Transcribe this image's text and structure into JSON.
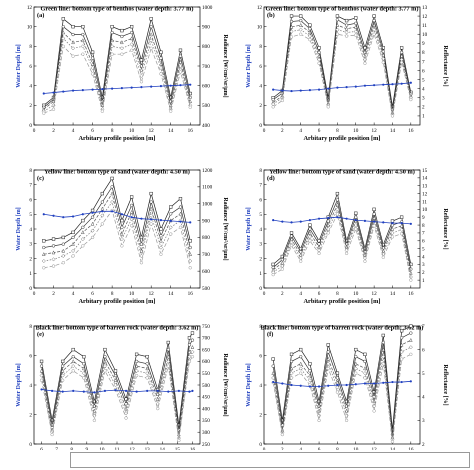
{
  "chart_data": [
    {
      "panel": "(a)",
      "type": "line",
      "title": "Green line: bottom type of benthos (water depth: 3.77 m)",
      "xlabel": "Arbitary profile position [m]",
      "ylabel": "Water Depth [m]",
      "y2label": "Radiance [W/cm²/sr/μm]",
      "xlim": [
        0,
        17
      ],
      "xticks": [
        0,
        2,
        4,
        6,
        8,
        10,
        12,
        14,
        16
      ],
      "ylim": [
        0,
        12
      ],
      "yticks": [
        0,
        2,
        4,
        6,
        8,
        10,
        12
      ],
      "y2lim": [
        400,
        1000
      ],
      "y2ticks": [
        400,
        500,
        600,
        700,
        800,
        900,
        1000
      ],
      "x": [
        1,
        2,
        3,
        4,
        5,
        6,
        7,
        8,
        9,
        10,
        11,
        12,
        13,
        14,
        15,
        16
      ],
      "depth": [
        3.2,
        3.3,
        3.4,
        3.5,
        3.55,
        3.6,
        3.65,
        3.7,
        3.75,
        3.8,
        3.85,
        3.9,
        3.95,
        4.0,
        4.05,
        4.1
      ],
      "series": [
        {
          "values": [
            500,
            540,
            940,
            900,
            900,
            770,
            540,
            900,
            880,
            900,
            730,
            940,
            770,
            540,
            780,
            560
          ]
        },
        {
          "values": [
            490,
            530,
            900,
            860,
            860,
            740,
            520,
            870,
            850,
            870,
            700,
            900,
            740,
            520,
            750,
            540
          ]
        },
        {
          "values": [
            480,
            520,
            870,
            820,
            830,
            710,
            500,
            830,
            820,
            840,
            680,
            860,
            710,
            500,
            720,
            520
          ]
        },
        {
          "values": [
            470,
            500,
            840,
            790,
            800,
            690,
            480,
            800,
            790,
            810,
            650,
            830,
            690,
            480,
            700,
            500
          ]
        },
        {
          "values": [
            460,
            480,
            800,
            750,
            760,
            660,
            470,
            760,
            760,
            780,
            620,
            790,
            660,
            470,
            670,
            490
          ]
        }
      ]
    },
    {
      "panel": "(b)",
      "type": "line",
      "title": "Green line: bottom type of benthos (water depth: 3.77 m)",
      "xlabel": "Arbitary profile position [m]",
      "ylabel": "Water Depth [m]",
      "y2label": "Reflectance [%]",
      "xlim": [
        0,
        17
      ],
      "xticks": [
        0,
        2,
        4,
        6,
        8,
        10,
        12,
        14,
        16
      ],
      "ylim": [
        0,
        12
      ],
      "yticks": [
        0,
        2,
        4,
        6,
        8,
        10,
        12
      ],
      "y2lim": [
        0,
        13
      ],
      "y2ticks": [
        1,
        2,
        3,
        4,
        5,
        6,
        7,
        8,
        9,
        10,
        11,
        12,
        13
      ],
      "x": [
        1,
        2,
        3,
        4,
        5,
        6,
        7,
        8,
        9,
        10,
        11,
        12,
        13,
        14,
        15,
        16
      ],
      "depth": [
        3.6,
        3.5,
        3.45,
        3.5,
        3.55,
        3.6,
        3.7,
        3.8,
        3.85,
        3.9,
        4.0,
        4.05,
        4.1,
        4.15,
        4.2,
        4.3
      ],
      "series": [
        {
          "values": [
            3.0,
            3.8,
            12.0,
            12.0,
            11.0,
            8.5,
            3.0,
            12.0,
            11.5,
            11.8,
            8.5,
            12.0,
            8.5,
            2.0,
            8.5,
            3.6
          ]
        },
        {
          "values": [
            2.8,
            3.5,
            11.4,
            11.5,
            10.6,
            8.0,
            2.7,
            11.6,
            11.0,
            11.2,
            8.0,
            11.5,
            8.1,
            1.7,
            8.0,
            3.4
          ]
        },
        {
          "values": [
            2.5,
            3.2,
            10.8,
            11.0,
            10.2,
            7.6,
            2.4,
            11.0,
            10.6,
            10.8,
            7.6,
            11.0,
            7.7,
            1.4,
            7.6,
            3.2
          ]
        },
        {
          "values": [
            2.3,
            3.0,
            10.3,
            10.5,
            9.8,
            7.2,
            2.2,
            10.5,
            10.2,
            10.3,
            7.2,
            10.5,
            7.3,
            1.2,
            7.2,
            3.0
          ]
        },
        {
          "values": [
            2.0,
            2.7,
            9.7,
            10.0,
            9.4,
            6.8,
            2.0,
            10.0,
            9.8,
            9.9,
            6.8,
            10.0,
            6.9,
            1.0,
            6.9,
            2.8
          ]
        }
      ]
    },
    {
      "panel": "(c)",
      "type": "line",
      "title": "Yellow line: bottom type of sand (water depth: 4.50 m)",
      "xlabel": "Arbitary profile position [m]",
      "ylabel": "Water Depth [m]",
      "y2label": "Radiance [W/cm²/sr/μm]",
      "xlim": [
        0,
        17
      ],
      "xticks": [
        0,
        2,
        4,
        6,
        8,
        10,
        12,
        14,
        16
      ],
      "ylim": [
        0,
        8
      ],
      "yticks": [
        0,
        1,
        2,
        3,
        4,
        5,
        6,
        7,
        8
      ],
      "y2lim": [
        500,
        1200
      ],
      "y2ticks": [
        500,
        600,
        700,
        800,
        900,
        1000,
        1100,
        1200
      ],
      "x": [
        1,
        2,
        3,
        4,
        5,
        6,
        7,
        8,
        9,
        10,
        11,
        12,
        13,
        14,
        15,
        16
      ],
      "depth": [
        5.0,
        4.9,
        4.8,
        4.85,
        5.0,
        5.1,
        5.2,
        5.2,
        5.0,
        4.8,
        4.7,
        4.65,
        4.6,
        4.55,
        4.5,
        4.45
      ],
      "series": [
        {
          "values": [
            780,
            790,
            800,
            830,
            900,
            960,
            1060,
            1150,
            900,
            1040,
            800,
            1060,
            850,
            980,
            1030,
            780
          ]
        },
        {
          "values": [
            740,
            750,
            760,
            800,
            860,
            920,
            1010,
            1100,
            860,
            990,
            760,
            1010,
            810,
            940,
            980,
            740
          ]
        },
        {
          "values": [
            700,
            710,
            720,
            760,
            830,
            880,
            970,
            1060,
            820,
            950,
            720,
            970,
            780,
            900,
            940,
            700
          ]
        },
        {
          "values": [
            660,
            670,
            690,
            720,
            790,
            840,
            930,
            1010,
            790,
            910,
            690,
            930,
            740,
            860,
            900,
            660
          ]
        },
        {
          "values": [
            620,
            630,
            650,
            690,
            750,
            800,
            880,
            960,
            750,
            870,
            650,
            880,
            700,
            820,
            860,
            620
          ]
        }
      ]
    },
    {
      "panel": "(d)",
      "type": "line",
      "title": "Yellow line: bottom type of sand (water depth: 4.50 m)",
      "xlabel": "Arbitary profile position [m]",
      "ylabel": "Water Depth [m]",
      "y2label": "Reflectance [%]",
      "xlim": [
        0,
        17
      ],
      "xticks": [
        0,
        2,
        4,
        6,
        8,
        10,
        12,
        14,
        16
      ],
      "ylim": [
        0,
        8
      ],
      "yticks": [
        0,
        1,
        2,
        3,
        4,
        5,
        6,
        7,
        8
      ],
      "y2lim": [
        0,
        15
      ],
      "y2ticks": [
        1,
        2,
        3,
        4,
        5,
        6,
        7,
        8,
        9,
        10,
        11,
        12,
        13,
        14,
        15
      ],
      "x": [
        1,
        2,
        3,
        4,
        5,
        6,
        7,
        8,
        9,
        10,
        11,
        12,
        13,
        14,
        15,
        16
      ],
      "depth": [
        4.6,
        4.5,
        4.45,
        4.5,
        4.6,
        4.7,
        4.75,
        4.8,
        4.7,
        4.6,
        4.55,
        4.5,
        4.45,
        4.4,
        4.4,
        4.35
      ],
      "series": [
        {
          "values": [
            3.0,
            4.0,
            7.0,
            5.0,
            8.0,
            6.0,
            9.0,
            12.0,
            6.0,
            9.5,
            5.0,
            10.0,
            5.5,
            8.5,
            9.0,
            3.0
          ]
        },
        {
          "values": [
            2.6,
            3.6,
            6.6,
            4.6,
            7.5,
            5.6,
            8.5,
            11.2,
            5.6,
            9.0,
            4.6,
            9.4,
            5.1,
            8.0,
            8.4,
            2.4
          ]
        },
        {
          "values": [
            2.3,
            3.2,
            6.2,
            4.2,
            7.0,
            5.2,
            8.0,
            10.6,
            5.2,
            8.5,
            4.2,
            8.9,
            4.7,
            7.5,
            7.9,
            1.9
          ]
        },
        {
          "values": [
            2.0,
            2.8,
            5.8,
            3.8,
            6.5,
            4.8,
            7.5,
            10.0,
            4.8,
            8.0,
            3.8,
            8.4,
            4.3,
            7.0,
            7.4,
            1.4
          ]
        },
        {
          "values": [
            1.7,
            2.4,
            5.4,
            3.4,
            6.0,
            4.4,
            7.0,
            9.4,
            4.4,
            7.5,
            3.4,
            7.9,
            3.9,
            6.5,
            6.9,
            1.0
          ]
        }
      ]
    },
    {
      "panel": "(e)",
      "type": "line",
      "title": "Black line: bottom type of barren rock (water depth: 3.62 m)",
      "xlabel": "Arbitary profile position [m]",
      "ylabel": "Water Depth [m]",
      "y2label": "Radiance [W/cm²/sr/μm]",
      "xlim": [
        5.5,
        16.5
      ],
      "xticks": [
        6,
        7,
        8,
        9,
        10,
        11,
        12,
        13,
        14,
        15,
        16
      ],
      "ylim": [
        0,
        8
      ],
      "yticks": [
        0,
        2,
        4,
        6,
        8
      ],
      "y2lim": [
        250,
        750
      ],
      "y2ticks": [
        250,
        300,
        350,
        400,
        450,
        500,
        550,
        600,
        650,
        700,
        750
      ],
      "x": [
        6,
        6.7,
        7.4,
        8.1,
        8.8,
        9.5,
        10.2,
        10.9,
        11.6,
        12.3,
        13.0,
        13.7,
        14.4,
        15.1,
        15.8,
        16
      ],
      "depth": [
        3.7,
        3.6,
        3.55,
        3.6,
        3.55,
        3.5,
        3.6,
        3.65,
        3.6,
        3.55,
        3.6,
        3.6,
        3.55,
        3.6,
        3.55,
        3.6
      ],
      "series": [
        {
          "values": [
            600,
            350,
            600,
            650,
            620,
            430,
            650,
            560,
            440,
            630,
            620,
            480,
            680,
            330,
            700,
            720
          ]
        },
        {
          "values": [
            580,
            330,
            580,
            620,
            590,
            410,
            620,
            540,
            420,
            600,
            590,
            460,
            650,
            310,
            670,
            690
          ]
        },
        {
          "values": [
            560,
            310,
            560,
            600,
            570,
            390,
            600,
            520,
            400,
            580,
            570,
            440,
            620,
            290,
            640,
            660
          ]
        },
        {
          "values": [
            540,
            300,
            540,
            580,
            550,
            370,
            580,
            500,
            380,
            560,
            550,
            420,
            600,
            275,
            620,
            640
          ]
        },
        {
          "values": [
            520,
            290,
            520,
            560,
            530,
            350,
            560,
            480,
            360,
            540,
            530,
            400,
            580,
            265,
            600,
            620
          ]
        }
      ]
    },
    {
      "panel": "(f)",
      "type": "line",
      "title": "Black line: bottom type of barren rock (water depth: 3.62 m)",
      "xlabel": "Arbitary profile position [m]",
      "ylabel": "Water Depth [m]",
      "y2label": "Reflectance [%]",
      "xlim": [
        0,
        17
      ],
      "xticks": [
        0,
        2,
        4,
        6,
        8,
        10,
        12,
        14,
        16
      ],
      "ylim": [
        0,
        8
      ],
      "yticks": [
        0,
        2,
        4,
        6,
        8
      ],
      "y2lim": [
        2,
        7
      ],
      "y2ticks": [
        2,
        3,
        4,
        5,
        6,
        7
      ],
      "x": [
        1,
        2,
        3,
        4,
        5,
        6,
        7,
        8,
        9,
        10,
        11,
        12,
        13,
        14,
        15,
        16
      ],
      "depth": [
        4.2,
        4.1,
        4.0,
        3.95,
        3.9,
        3.9,
        3.95,
        4.0,
        4.0,
        4.05,
        4.1,
        4.1,
        4.15,
        4.2,
        4.2,
        4.25
      ],
      "series": [
        {
          "values": [
            5.6,
            3.0,
            5.8,
            6.0,
            5.4,
            3.8,
            6.2,
            5.0,
            3.8,
            6.0,
            5.8,
            4.2,
            6.6,
            2.6,
            6.8,
            7.0
          ]
        },
        {
          "values": [
            5.3,
            2.8,
            5.5,
            5.7,
            5.1,
            3.6,
            5.9,
            4.8,
            3.6,
            5.7,
            5.5,
            4.0,
            6.3,
            2.4,
            6.5,
            6.7
          ]
        },
        {
          "values": [
            5.0,
            2.6,
            5.2,
            5.4,
            4.9,
            3.4,
            5.6,
            4.6,
            3.4,
            5.4,
            5.2,
            3.8,
            6.0,
            2.3,
            6.2,
            6.4
          ]
        },
        {
          "values": [
            4.8,
            2.5,
            5.0,
            5.2,
            4.7,
            3.2,
            5.4,
            4.4,
            3.2,
            5.2,
            5.0,
            3.6,
            5.7,
            2.2,
            5.9,
            6.1
          ]
        },
        {
          "values": [
            4.6,
            2.4,
            4.8,
            5.0,
            4.5,
            3.0,
            5.2,
            4.2,
            3.0,
            5.0,
            4.8,
            3.4,
            5.4,
            2.1,
            5.6,
            5.8
          ]
        }
      ]
    }
  ],
  "colors": {
    "depth_line": "#1f3fbf",
    "series_stroke": [
      "#222222",
      "#333333",
      "#555555",
      "#777777",
      "#999999"
    ],
    "left_axis_label": "#1f3fbf"
  }
}
